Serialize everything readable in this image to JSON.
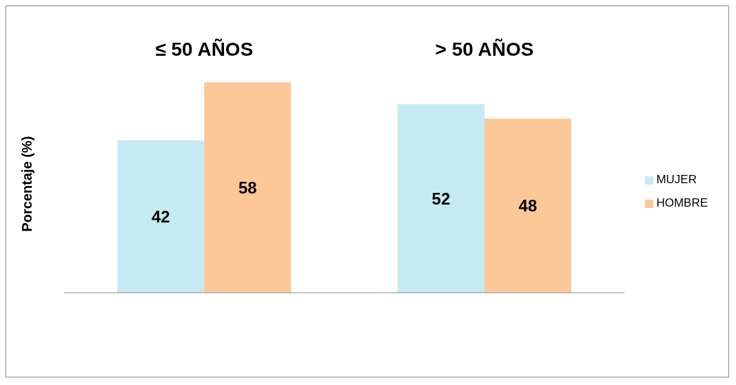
{
  "chart_data": {
    "type": "bar",
    "categories": [
      "≤ 50 AÑOS",
      "> 50 AÑOS"
    ],
    "ylabel": "Porcentaje (%)",
    "data_labels": true,
    "legend": "right",
    "grid": false,
    "series": [
      {
        "name": "MUJER",
        "color": "#c6eaf4",
        "values": [
          42,
          52
        ]
      },
      {
        "name": "HOMBRE",
        "color": "#fcc898",
        "values": [
          58,
          48
        ]
      }
    ]
  }
}
